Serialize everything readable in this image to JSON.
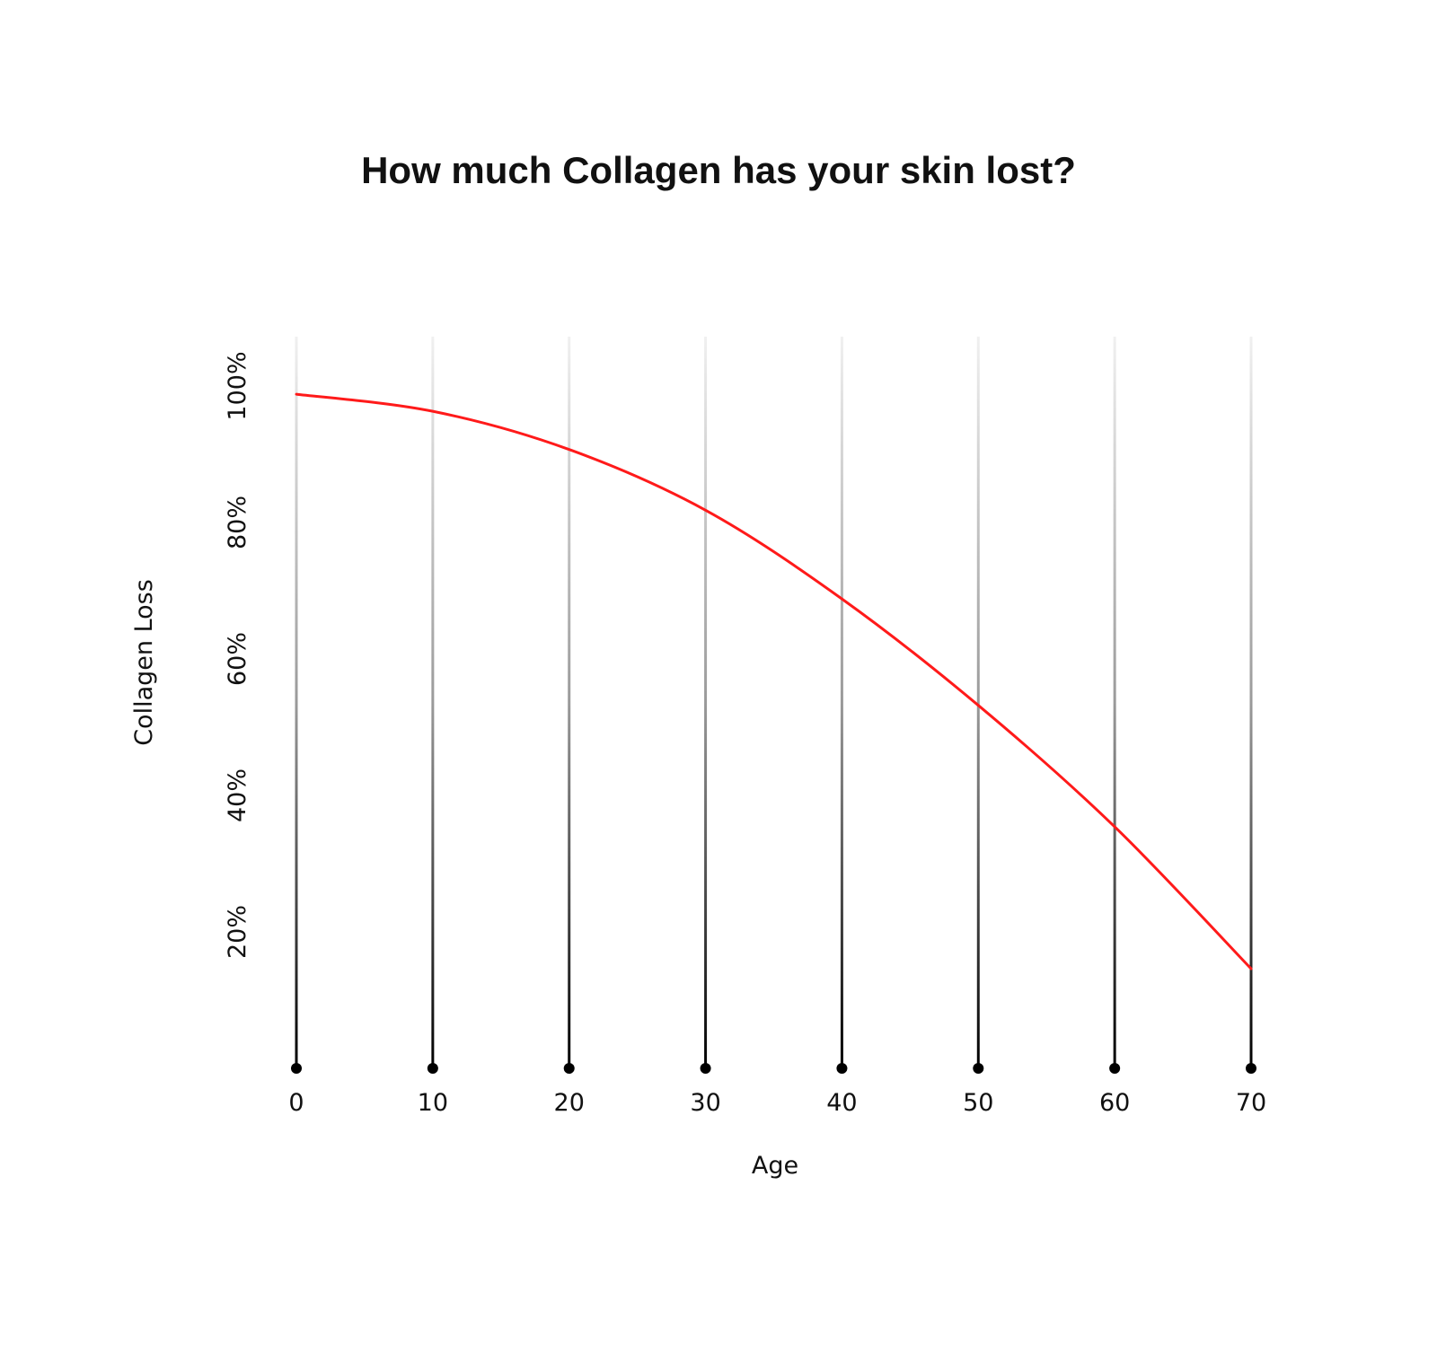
{
  "chart_data": {
    "type": "line",
    "title": "How much Collagen has your skin lost?",
    "xlabel": "Age",
    "ylabel": "Collagen Loss",
    "x_ticks": [
      0,
      10,
      20,
      30,
      40,
      50,
      60,
      70
    ],
    "x_tick_labels": [
      "0",
      "10",
      "20",
      "30",
      "40",
      "50",
      "60",
      "70"
    ],
    "y_ticks": [
      20,
      40,
      60,
      80,
      100
    ],
    "y_tick_labels": [
      "20%",
      "40%",
      "60%",
      "80%",
      "100%"
    ],
    "xlim": [
      0,
      70
    ],
    "ylim": [
      0,
      105
    ],
    "grid": "vertical lines with gradient from light gray (top) to black (bottom), dot markers at base",
    "series": [
      {
        "x": [
          0,
          10,
          20,
          30,
          40,
          50,
          60,
          70
        ],
        "y": [
          98.8,
          96.3,
          90.7,
          81.8,
          68.8,
          53.2,
          35.4,
          14.6
        ],
        "color": "#ff1a1a"
      }
    ],
    "colors": {
      "line": "#ff1a1a",
      "grid_top": "#ebebeb",
      "grid_bottom": "#000000",
      "text": "#111111"
    }
  }
}
